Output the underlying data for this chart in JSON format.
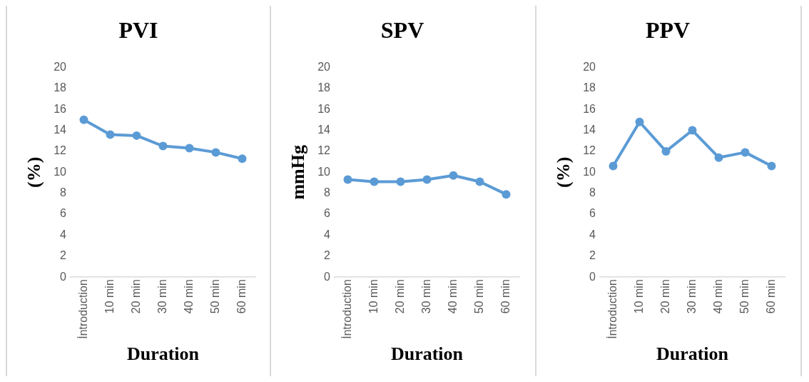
{
  "chart_data": [
    {
      "type": "line",
      "title": "PVI",
      "xlabel": "Duration",
      "ylabel": "(%)",
      "categories": [
        "İntroduction",
        "10 min",
        "20 min",
        "30 min",
        "40 min",
        "50 min",
        "60 min"
      ],
      "series": [
        {
          "color": "#5b9bd5",
          "values": [
            15,
            13.6,
            13.5,
            12.5,
            12.3,
            11.9,
            11.3
          ]
        }
      ],
      "ylim": [
        0,
        20
      ],
      "yticks": [
        0,
        2,
        4,
        6,
        8,
        10,
        12,
        14,
        16,
        18,
        20
      ],
      "grid": false,
      "legend": false,
      "marker": "circle"
    },
    {
      "type": "line",
      "title": "SPV",
      "xlabel": "Duration",
      "ylabel": "mmHg",
      "categories": [
        "İntroduction",
        "10 min",
        "20 min",
        "30 min",
        "40 min",
        "50 min",
        "60 min"
      ],
      "series": [
        {
          "color": "#5b9bd5",
          "values": [
            9.3,
            9.1,
            9.1,
            9.3,
            9.7,
            9.1,
            7.9
          ]
        }
      ],
      "ylim": [
        0,
        20
      ],
      "yticks": [
        0,
        2,
        4,
        6,
        8,
        10,
        12,
        14,
        16,
        18,
        20
      ],
      "grid": false,
      "legend": false,
      "marker": "circle"
    },
    {
      "type": "line",
      "title": "PPV",
      "xlabel": "Duration",
      "ylabel": "(%)",
      "categories": [
        "İntroduction",
        "10 min",
        "20 min",
        "30 min",
        "40 min",
        "50 min",
        "60 min"
      ],
      "series": [
        {
          "color": "#5b9bd5",
          "values": [
            10.6,
            14.8,
            12,
            14,
            11.4,
            11.9,
            10.6
          ]
        }
      ],
      "ylim": [
        0,
        20
      ],
      "yticks": [
        0,
        2,
        4,
        6,
        8,
        10,
        12,
        14,
        16,
        18,
        20
      ],
      "grid": false,
      "legend": false,
      "marker": "circle"
    }
  ]
}
